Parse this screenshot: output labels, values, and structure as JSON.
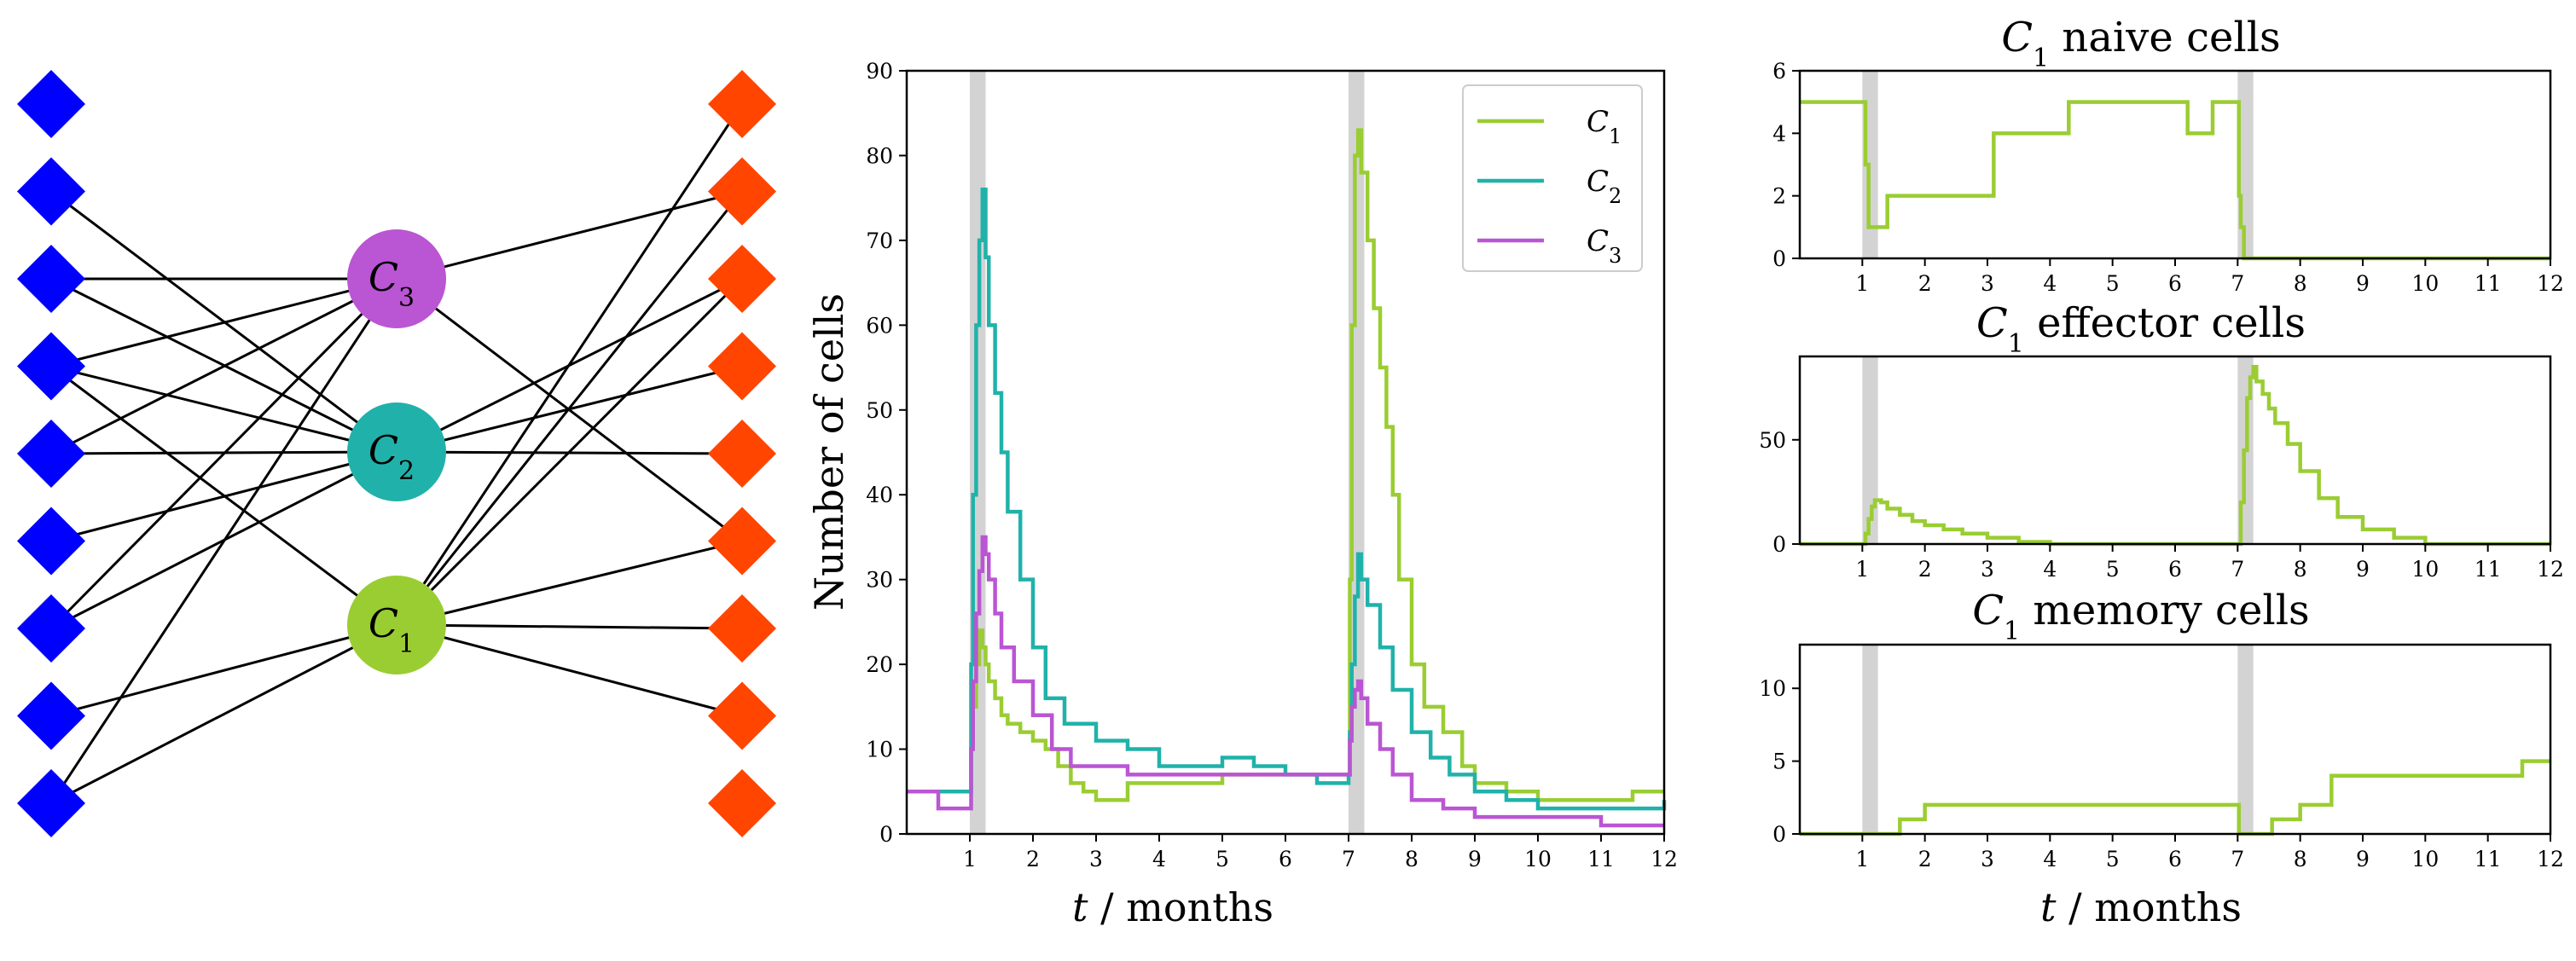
{
  "colors": {
    "left_nodes": "#0000ff",
    "right_nodes": "#ff4500",
    "C1": "#9acd32",
    "C2": "#20b2aa",
    "C3": "#ba55d3",
    "edges": "#000000",
    "shade": "#d3d3d3"
  },
  "network": {
    "clonotypes": [
      {
        "id": "C3",
        "label": "C",
        "sub": "3"
      },
      {
        "id": "C2",
        "label": "C",
        "sub": "2"
      },
      {
        "id": "C1",
        "label": "C",
        "sub": "1"
      }
    ],
    "left_count": 9,
    "right_count": 9,
    "left_edges": [
      [
        1,
        "C2"
      ],
      [
        2,
        "C3"
      ],
      [
        2,
        "C2"
      ],
      [
        3,
        "C3"
      ],
      [
        3,
        "C2"
      ],
      [
        3,
        "C1"
      ],
      [
        4,
        "C3"
      ],
      [
        4,
        "C2"
      ],
      [
        5,
        "C2"
      ],
      [
        6,
        "C3"
      ],
      [
        6,
        "C2"
      ],
      [
        7,
        "C1"
      ],
      [
        8,
        "C3"
      ],
      [
        8,
        "C1"
      ]
    ],
    "right_edges": [
      [
        0,
        "C1"
      ],
      [
        1,
        "C3"
      ],
      [
        1,
        "C1"
      ],
      [
        2,
        "C2"
      ],
      [
        2,
        "C1"
      ],
      [
        3,
        "C2"
      ],
      [
        4,
        "C2"
      ],
      [
        5,
        "C3"
      ],
      [
        5,
        "C1"
      ],
      [
        6,
        "C1"
      ],
      [
        7,
        "C1"
      ]
    ]
  },
  "chart_data": [
    {
      "type": "line",
      "id": "main",
      "title": "",
      "xlabel": {
        "var": "t",
        "rest": " / months"
      },
      "ylabel": "Number of cells",
      "xlim": [
        0,
        12
      ],
      "ylim": [
        0,
        90
      ],
      "xticks": [
        1,
        2,
        3,
        4,
        5,
        6,
        7,
        8,
        9,
        10,
        11,
        12
      ],
      "yticks": [
        0,
        10,
        20,
        30,
        40,
        50,
        60,
        70,
        80,
        90
      ],
      "shaded_intervals": [
        [
          1,
          1.25
        ],
        [
          7,
          7.25
        ]
      ],
      "legend": {
        "position": "top-right",
        "entries": [
          {
            "label": "C",
            "sub": "1",
            "color": "#9acd32"
          },
          {
            "label": "C",
            "sub": "2",
            "color": "#20b2aa"
          },
          {
            "label": "C",
            "sub": "3",
            "color": "#ba55d3"
          }
        ]
      },
      "series": [
        {
          "name": "C1",
          "color": "#9acd32",
          "x": [
            0,
            1,
            1.02,
            1.05,
            1.1,
            1.15,
            1.2,
            1.25,
            1.3,
            1.4,
            1.5,
            1.6,
            1.8,
            2,
            2.2,
            2.4,
            2.6,
            2.8,
            3,
            3.5,
            4,
            5,
            6,
            7,
            7.02,
            7.05,
            7.1,
            7.15,
            7.2,
            7.3,
            7.4,
            7.5,
            7.6,
            7.7,
            7.8,
            8,
            8.2,
            8.5,
            8.8,
            9,
            9.5,
            10,
            11,
            11.5,
            12
          ],
          "y": [
            5,
            5,
            10,
            15,
            20,
            24,
            22,
            20,
            18,
            16,
            14,
            13,
            12,
            11,
            10,
            8,
            6,
            5,
            4,
            6,
            6,
            7,
            7,
            7,
            30,
            60,
            80,
            83,
            78,
            70,
            62,
            55,
            48,
            40,
            30,
            20,
            15,
            12,
            8,
            6,
            5,
            4,
            4,
            5,
            5
          ]
        },
        {
          "name": "C2",
          "color": "#20b2aa",
          "x": [
            0,
            1,
            1.02,
            1.05,
            1.1,
            1.15,
            1.2,
            1.25,
            1.3,
            1.4,
            1.5,
            1.6,
            1.8,
            2,
            2.2,
            2.5,
            3,
            3.5,
            4,
            4.5,
            5,
            5.5,
            6,
            6.5,
            7,
            7.02,
            7.05,
            7.1,
            7.15,
            7.2,
            7.3,
            7.5,
            7.7,
            8,
            8.3,
            8.6,
            9,
            9.5,
            10,
            11,
            12
          ],
          "y": [
            5,
            5,
            20,
            40,
            60,
            70,
            76,
            68,
            60,
            52,
            45,
            38,
            30,
            22,
            16,
            13,
            11,
            10,
            8,
            8,
            9,
            8,
            7,
            6,
            7,
            12,
            20,
            28,
            33,
            30,
            27,
            22,
            17,
            12,
            9,
            7,
            5,
            4,
            3,
            3,
            4
          ]
        },
        {
          "name": "C3",
          "color": "#ba55d3",
          "x": [
            0,
            0.5,
            1,
            1.02,
            1.05,
            1.1,
            1.15,
            1.2,
            1.25,
            1.3,
            1.4,
            1.5,
            1.7,
            2,
            2.3,
            2.6,
            3,
            3.5,
            4,
            5,
            6,
            7,
            7.02,
            7.05,
            7.1,
            7.15,
            7.2,
            7.3,
            7.5,
            7.7,
            8,
            8.5,
            9,
            10,
            11,
            12
          ],
          "y": [
            5,
            3,
            3,
            10,
            18,
            26,
            31,
            35,
            33,
            30,
            26,
            22,
            18,
            14,
            10,
            8,
            8,
            7,
            7,
            7,
            7,
            7,
            11,
            15,
            17,
            18,
            16,
            13,
            10,
            7,
            4,
            3,
            2,
            2,
            1,
            1
          ]
        }
      ]
    },
    {
      "type": "line",
      "id": "naive",
      "title": {
        "var": "C",
        "sub": "1",
        "rest": " naive cells"
      },
      "xlim": [
        0,
        12
      ],
      "ylim": [
        0,
        6
      ],
      "xticks": [
        1,
        2,
        3,
        4,
        5,
        6,
        7,
        8,
        9,
        10,
        11,
        12
      ],
      "yticks": [
        0,
        2,
        4,
        6
      ],
      "shaded_intervals": [
        [
          1,
          1.25
        ],
        [
          7,
          7.25
        ]
      ],
      "series": [
        {
          "name": "C1",
          "color": "#9acd32",
          "x": [
            0,
            1,
            1.05,
            1.1,
            1.2,
            1.3,
            1.4,
            1.6,
            2,
            2.5,
            3,
            3.1,
            3.5,
            4,
            4.3,
            4.5,
            5,
            6,
            6.2,
            6.5,
            6.6,
            7,
            7.02,
            7.05,
            7.1,
            7.2,
            8,
            9,
            10,
            11,
            12
          ],
          "y": [
            5,
            5,
            3,
            1,
            1,
            1,
            2,
            2,
            2,
            2,
            2,
            4,
            4,
            4,
            5,
            5,
            5,
            5,
            4,
            4,
            5,
            5,
            2,
            1,
            0,
            0,
            0,
            0,
            0,
            0,
            0
          ]
        }
      ]
    },
    {
      "type": "line",
      "id": "effector",
      "title": {
        "var": "C",
        "sub": "1",
        "rest": " effector cells"
      },
      "xlim": [
        0,
        12
      ],
      "ylim": [
        0,
        90
      ],
      "xticks": [
        1,
        2,
        3,
        4,
        5,
        6,
        7,
        8,
        9,
        10,
        11,
        12
      ],
      "yticks": [
        0,
        50
      ],
      "shaded_intervals": [
        [
          1,
          1.25
        ],
        [
          7,
          7.25
        ]
      ],
      "series": [
        {
          "name": "C1",
          "color": "#9acd32",
          "x": [
            0,
            1,
            1.05,
            1.1,
            1.15,
            1.2,
            1.3,
            1.4,
            1.6,
            1.8,
            2,
            2.3,
            2.6,
            3,
            3.5,
            4,
            5,
            6,
            7,
            7.05,
            7.1,
            7.15,
            7.2,
            7.25,
            7.3,
            7.4,
            7.5,
            7.6,
            7.8,
            8,
            8.3,
            8.6,
            9,
            9.5,
            10,
            11,
            12
          ],
          "y": [
            0,
            0,
            5,
            12,
            18,
            21,
            20,
            17,
            14,
            11,
            9,
            7,
            5,
            3,
            1,
            0,
            0,
            0,
            0,
            20,
            45,
            70,
            80,
            85,
            78,
            72,
            65,
            58,
            48,
            35,
            22,
            13,
            7,
            3,
            0,
            0,
            0
          ]
        }
      ]
    },
    {
      "type": "line",
      "id": "memory",
      "title": {
        "var": "C",
        "sub": "1",
        "rest": " memory cells"
      },
      "xlabel": {
        "var": "t",
        "rest": " / months"
      },
      "xlim": [
        0,
        12
      ],
      "ylim": [
        0,
        13
      ],
      "xticks": [
        1,
        2,
        3,
        4,
        5,
        6,
        7,
        8,
        9,
        10,
        11,
        12
      ],
      "yticks": [
        0,
        5,
        10
      ],
      "shaded_intervals": [
        [
          1,
          1.25
        ],
        [
          7,
          7.25
        ]
      ],
      "series": [
        {
          "name": "C1",
          "color": "#9acd32",
          "x": [
            0,
            1,
            1.5,
            1.6,
            1.9,
            2,
            3,
            4,
            5,
            6,
            7,
            7.02,
            7.3,
            7.5,
            7.55,
            7.9,
            8,
            8.45,
            8.5,
            9,
            10,
            11,
            11.5,
            11.55,
            12
          ],
          "y": [
            0,
            0,
            0,
            1,
            1,
            2,
            2,
            2,
            2,
            2,
            2,
            0,
            0,
            0,
            1,
            1,
            2,
            2,
            4,
            4,
            4,
            4,
            4,
            5,
            5
          ]
        }
      ]
    }
  ]
}
